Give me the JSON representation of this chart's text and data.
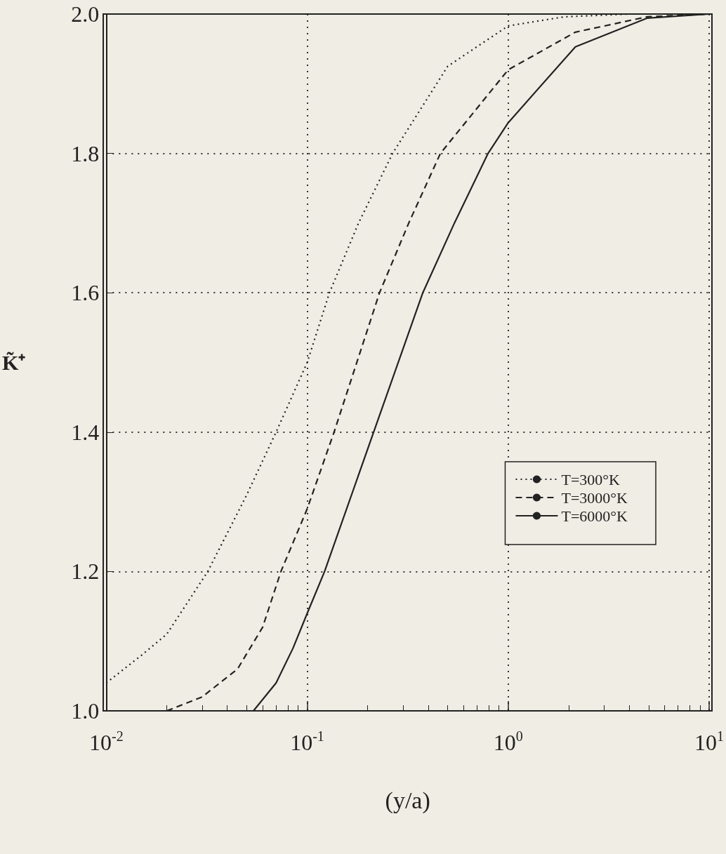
{
  "chart_data": {
    "type": "line",
    "xlabel": "(y/a)",
    "ylabel": "K̃⁺",
    "log": "x",
    "xlim": [
      0.01,
      10
    ],
    "ylim": [
      1,
      2
    ],
    "xticks": [
      {
        "value": 0.01,
        "label": "10$^{-2}$"
      },
      {
        "value": 0.1,
        "label": "10$^{-1}$"
      },
      {
        "value": 1,
        "label": "10$^{0}$"
      },
      {
        "value": 10,
        "label": "10$^{1}$"
      }
    ],
    "yticks": [
      {
        "value": 1,
        "label": "1.0"
      },
      {
        "value": 1.2,
        "label": "1.2"
      },
      {
        "value": 1.4,
        "label": "1.4"
      },
      {
        "value": 1.6,
        "label": "1.6"
      },
      {
        "value": 1.8,
        "label": "1.8"
      },
      {
        "value": 2,
        "label": "2.0"
      }
    ],
    "grid": true,
    "legend": "right",
    "marker": "none",
    "series": [
      {
        "name": "T=300°K",
        "color": "#222222",
        "line_style": "dotted",
        "x": [
          0.01,
          0.015,
          0.02,
          0.032,
          0.05,
          0.07,
          0.1,
          0.129,
          0.18,
          0.266,
          0.5,
          1,
          1.9,
          4,
          10
        ],
        "values": [
          1.04,
          1.08,
          1.11,
          1.2,
          1.31,
          1.4,
          1.5,
          1.6,
          1.7,
          1.8,
          1.925,
          1.983,
          1.996,
          2,
          2
        ]
      },
      {
        "name": "T=3000°K",
        "color": "#222222",
        "line_style": "dashed",
        "x": [
          0.02,
          0.03,
          0.045,
          0.06,
          0.074,
          0.1,
          0.136,
          0.229,
          0.32,
          0.46,
          1,
          2.16,
          4.9,
          10
        ],
        "values": [
          1,
          1.02,
          1.06,
          1.12,
          1.2,
          1.29,
          1.4,
          1.6,
          1.7,
          1.8,
          1.92,
          1.974,
          1.996,
          2
        ]
      },
      {
        "name": "T=6000°K",
        "color": "#222222",
        "line_style": "solid",
        "x": [
          0.054,
          0.07,
          0.085,
          0.1,
          0.122,
          0.214,
          0.376,
          0.54,
          0.794,
          1,
          2.16,
          4.9,
          10
        ],
        "values": [
          1,
          1.04,
          1.09,
          1.14,
          1.2,
          1.4,
          1.6,
          1.7,
          1.8,
          1.844,
          1.953,
          1.994,
          2
        ]
      }
    ]
  }
}
